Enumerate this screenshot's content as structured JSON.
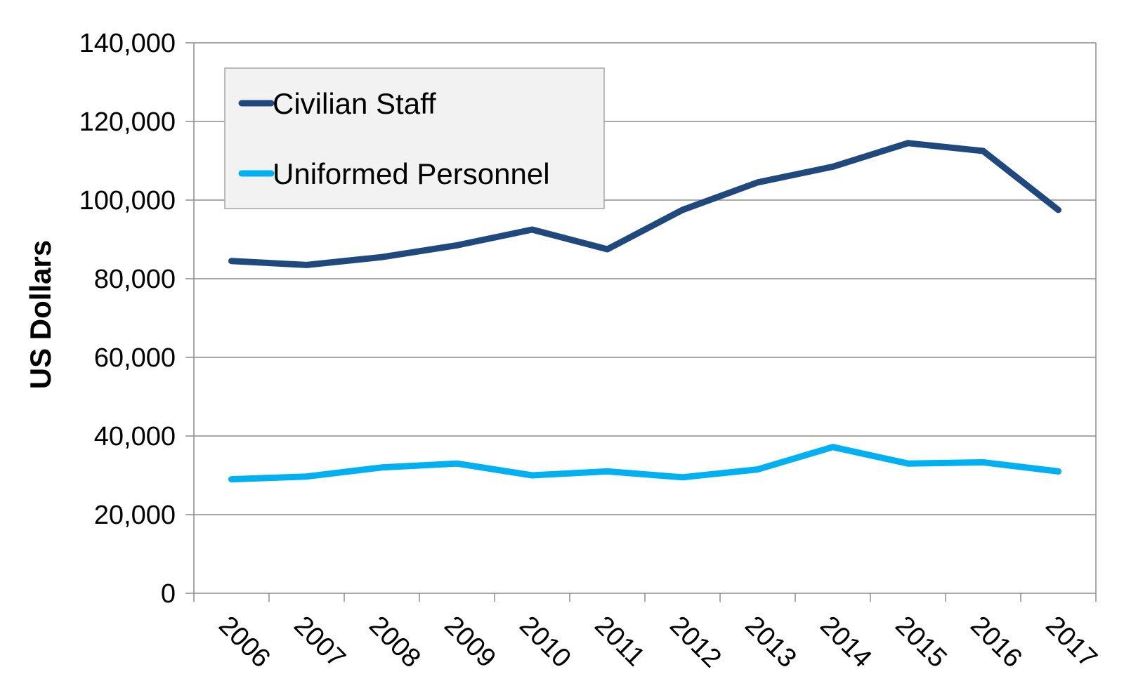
{
  "chart_data": {
    "type": "line",
    "title": "",
    "xlabel": "",
    "ylabel": "US Dollars",
    "categories": [
      "2006",
      "2007",
      "2008",
      "2009",
      "2010",
      "2011",
      "2012",
      "2013",
      "2014",
      "2015",
      "2016",
      "2017"
    ],
    "series": [
      {
        "name": "Civilian Staff",
        "color": "#1F497D",
        "values": [
          84500,
          83500,
          85500,
          88500,
          92500,
          87500,
          97500,
          104500,
          108500,
          114500,
          112500,
          97500
        ]
      },
      {
        "name": "Uniformed Personnel",
        "color": "#00B0F0",
        "values": [
          29000,
          29700,
          32000,
          33000,
          30000,
          31000,
          29500,
          31500,
          37200,
          33000,
          33300,
          31000
        ]
      }
    ],
    "ylim": [
      0,
      140000
    ],
    "y_ticks": [
      0,
      20000,
      40000,
      60000,
      80000,
      100000,
      120000,
      140000
    ],
    "y_tick_labels": [
      "0",
      "20,000",
      "40,000",
      "60,000",
      "80,000",
      "100,000",
      "120,000",
      "140,000"
    ],
    "grid": true,
    "legend_position": "top-left"
  }
}
